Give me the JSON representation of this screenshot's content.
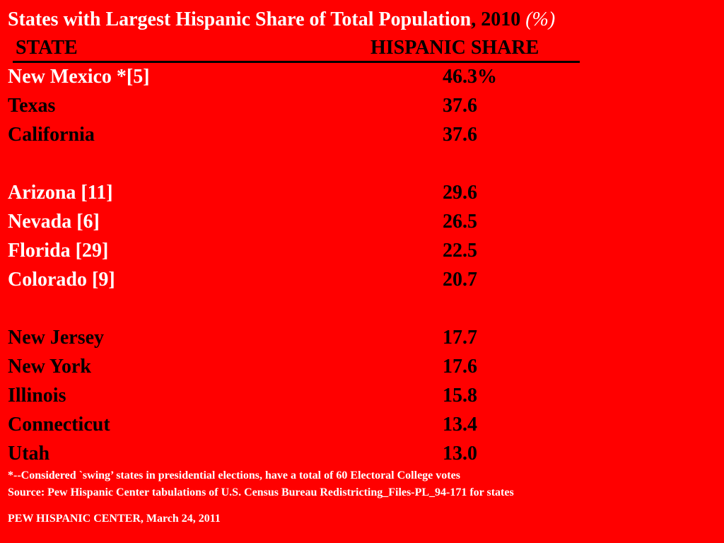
{
  "title": {
    "main": "States with Largest Hispanic Share of Total Population",
    "comma_year": ", 2010 ",
    "unit": "(%)"
  },
  "table": {
    "header_state": "STATE",
    "header_share": "HISPANIC SHARE",
    "rows": [
      {
        "state": "New Mexico *[5]",
        "share": "46.3%",
        "swing": true
      },
      {
        "state": "Texas",
        "share": "37.6",
        "swing": false
      },
      {
        "state": "California",
        "share": "37.6",
        "swing": false
      },
      {
        "state": "Arizona [11]",
        "share": "29.6",
        "swing": true
      },
      {
        "state": "Nevada [6]",
        "share": "26.5",
        "swing": true
      },
      {
        "state": "Florida [29]",
        "share": "22.5",
        "swing": true
      },
      {
        "state": "Colorado [9]",
        "share": "20.7",
        "swing": true
      },
      {
        "state": "New Jersey",
        "share": "17.7",
        "swing": false
      },
      {
        "state": "New York",
        "share": "17.6",
        "swing": false
      },
      {
        "state": "Illinois",
        "share": "15.8",
        "swing": false
      },
      {
        "state": "Connecticut",
        "share": "13.4",
        "swing": false
      },
      {
        "state": "Utah",
        "share": "13.0",
        "swing": false
      }
    ]
  },
  "footnote": "*--Considered `swing’ states in presidential elections, have a total of  60 Electoral College votes",
  "source": "Source: Pew Hispanic Center tabulations of U.S. Census Bureau Redistricting_Files-PL_94-171 for states",
  "publisher": "PEW HISPANIC CENTER, March 24, 2011",
  "colors": {
    "background": "#ff0000",
    "swing_state_text": "#ffffff",
    "other_text": "#000000"
  }
}
